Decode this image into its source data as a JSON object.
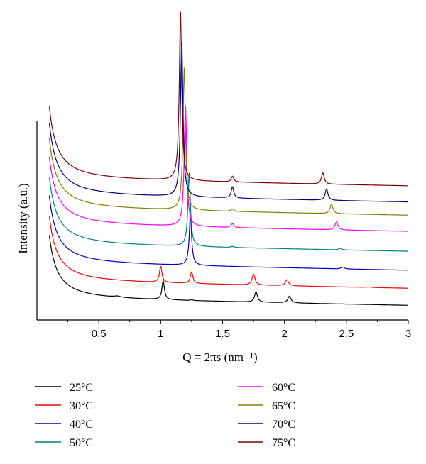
{
  "chart_data": {
    "type": "line",
    "xlabel": "Q = 2πs (nm⁻¹)",
    "ylabel": "Intensity (a.u.)",
    "xlim": [
      0.1,
      3.0
    ],
    "x_ticks": [
      "0.5",
      "1",
      "1.5",
      "2",
      "2.5",
      "3"
    ],
    "x_tick_values": [
      0.5,
      1.0,
      1.5,
      2.0,
      2.5,
      3.0
    ],
    "y_ticks_shown": false,
    "grid": false,
    "legend_position": "bottom",
    "series": [
      {
        "name": "25°C",
        "color": "#000000",
        "base_y": 1.0,
        "low_q_amplitude": 2.8,
        "peaks": [
          [
            0.65,
            0.06,
            0.03
          ],
          [
            1.02,
            1.0,
            0.012
          ],
          [
            1.25,
            0.04,
            0.01
          ],
          [
            1.77,
            0.55,
            0.014
          ],
          [
            2.04,
            0.36,
            0.015
          ]
        ]
      },
      {
        "name": "30°C",
        "color": "#ff0000",
        "base_y": 1.9,
        "low_q_amplitude": 2.9,
        "peaks": [
          [
            1.0,
            0.85,
            0.012
          ],
          [
            1.25,
            0.62,
            0.012
          ],
          [
            1.75,
            0.58,
            0.014
          ],
          [
            2.02,
            0.32,
            0.015
          ],
          [
            2.68,
            0.03,
            0.02
          ]
        ]
      },
      {
        "name": "40°C",
        "color": "#0000cc",
        "base_y": 2.85,
        "low_q_amplitude": 3.0,
        "peaks": [
          [
            1.24,
            2.6,
            0.012
          ],
          [
            2.47,
            0.1,
            0.015
          ]
        ]
      },
      {
        "name": "50°C",
        "color": "#008080",
        "base_y": 3.85,
        "low_q_amplitude": 3.0,
        "peaks": [
          [
            1.23,
            3.9,
            0.012
          ],
          [
            1.58,
            0.05,
            0.015
          ],
          [
            2.45,
            0.08,
            0.015
          ]
        ]
      },
      {
        "name": "60°C",
        "color": "#ff00ff",
        "base_y": 4.9,
        "low_q_amplitude": 3.0,
        "peaks": [
          [
            1.2,
            6.5,
            0.012
          ],
          [
            1.58,
            0.2,
            0.013
          ],
          [
            2.42,
            0.42,
            0.014
          ]
        ]
      },
      {
        "name": "65°C",
        "color": "#808000",
        "base_y": 5.75,
        "low_q_amplitude": 3.1,
        "peaks": [
          [
            1.19,
            7.5,
            0.012
          ],
          [
            1.58,
            0.12,
            0.013
          ],
          [
            2.38,
            0.5,
            0.014
          ]
        ]
      },
      {
        "name": "70°C",
        "color": "#000080",
        "base_y": 6.45,
        "low_q_amplitude": 3.2,
        "peaks": [
          [
            1.17,
            8.2,
            0.012
          ],
          [
            1.58,
            0.6,
            0.012
          ],
          [
            2.34,
            0.6,
            0.013
          ]
        ]
      },
      {
        "name": "75°C",
        "color": "#800000",
        "base_y": 7.3,
        "low_q_amplitude": 3.2,
        "peaks": [
          [
            1.16,
            8.9,
            0.012
          ],
          [
            1.58,
            0.3,
            0.012
          ],
          [
            2.31,
            0.6,
            0.013
          ]
        ]
      }
    ]
  },
  "legend": {
    "items": [
      {
        "label": "25°C",
        "color": "#000000"
      },
      {
        "label": "30°C",
        "color": "#ff0000"
      },
      {
        "label": "40°C",
        "color": "#0000cc"
      },
      {
        "label": "50°C",
        "color": "#008080"
      },
      {
        "label": "60°C",
        "color": "#ff00ff"
      },
      {
        "label": "65°C",
        "color": "#808000"
      },
      {
        "label": "70°C",
        "color": "#000080"
      },
      {
        "label": "75°C",
        "color": "#800000"
      }
    ]
  }
}
